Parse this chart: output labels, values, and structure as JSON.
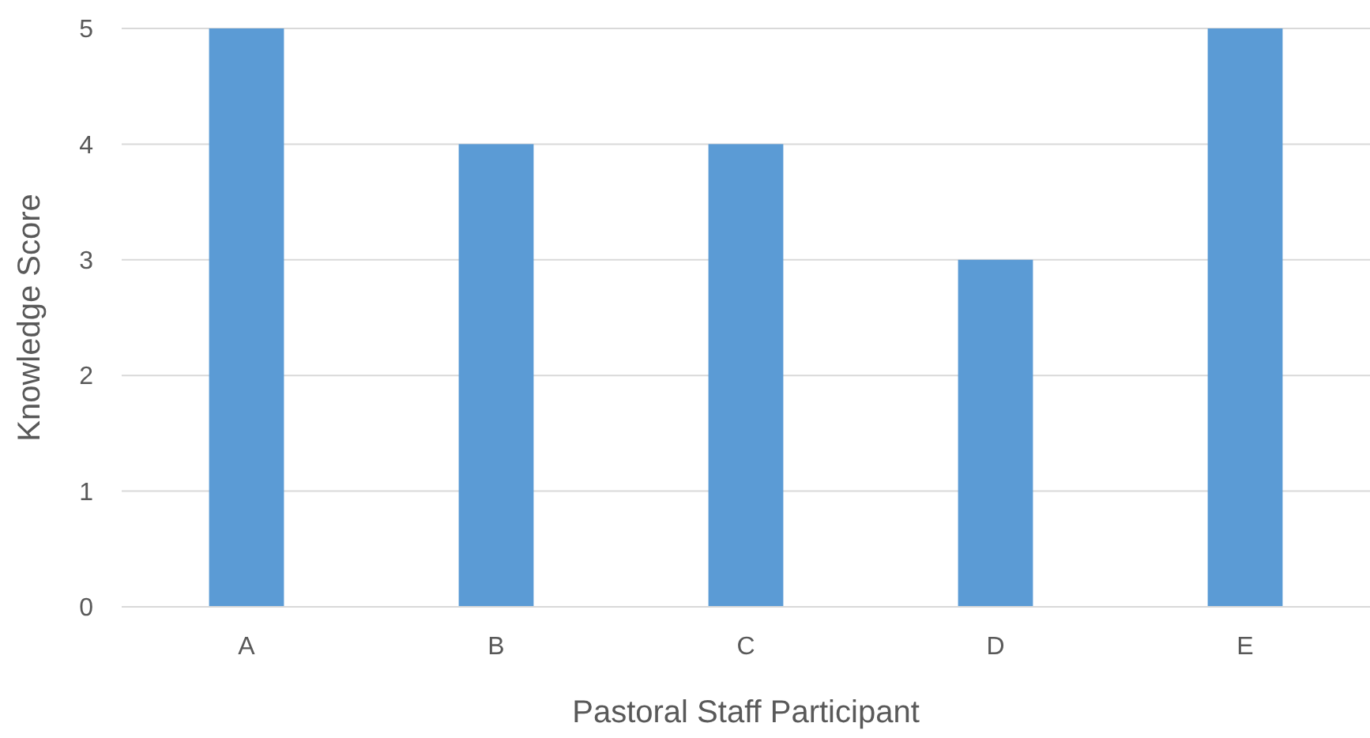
{
  "chart_data": {
    "type": "bar",
    "xlabel": "Pastoral Staff Participant",
    "ylabel": "Knowledge Score",
    "categories": [
      "A",
      "B",
      "C",
      "D",
      "E"
    ],
    "values": [
      5,
      4,
      4,
      3,
      5
    ],
    "color": "#5b9bd5",
    "ylim": [
      0,
      5
    ],
    "yticks": [
      0,
      1,
      2,
      3,
      4,
      5
    ],
    "grid": "y"
  }
}
